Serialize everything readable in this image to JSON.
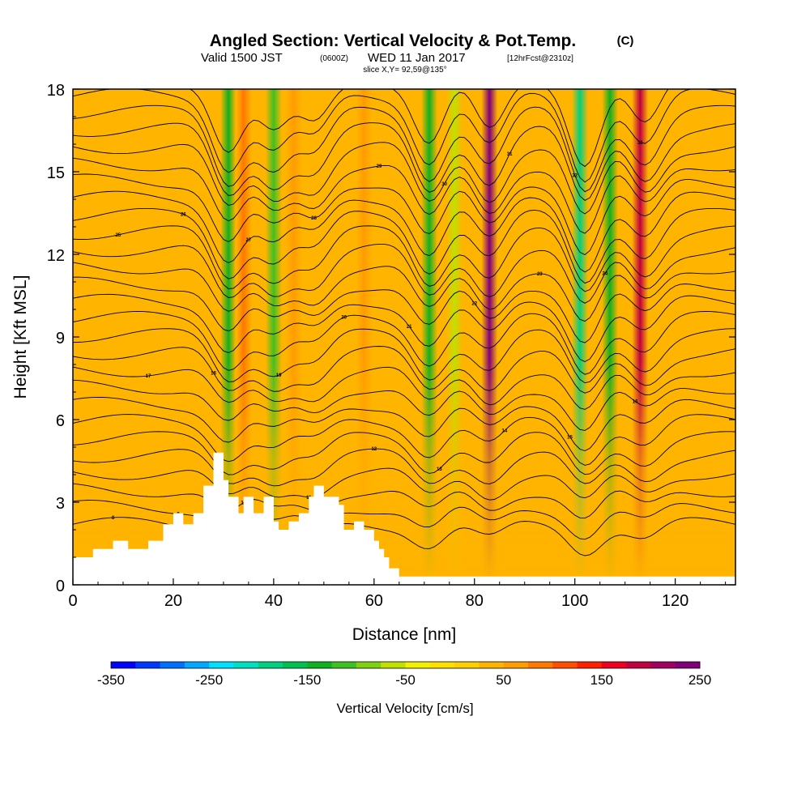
{
  "header": {
    "title_main": "Angled Section: Vertical Velocity & Pot.Temp.",
    "title_mark": "(C)",
    "valid_prefix": "Valid 1500 JST",
    "valid_utc": "(0600Z)",
    "valid_date": "WED 11 Jan 2017",
    "forecast": "[12hrFcst@2310z]",
    "slice": "slice X,Y= 92,59@135°"
  },
  "chart_data": {
    "type": "heatmap",
    "title": "Angled Section: Vertical Velocity & Pot.Temp.",
    "xlabel": "Distance [nm]",
    "ylabel": "Height [Kft MSL]",
    "xlim": [
      0,
      132
    ],
    "ylim": [
      0,
      18
    ],
    "x_ticks": [
      "0",
      "20",
      "40",
      "60",
      "80",
      "100",
      "120"
    ],
    "y_ticks": [
      "0",
      "3",
      "6",
      "9",
      "12",
      "15",
      "18"
    ],
    "colorbar": {
      "label": "Vertical Velocity [cm/s]",
      "tick_labels": [
        "-350",
        "-250",
        "-150",
        "-50",
        "50",
        "150",
        "250"
      ],
      "boundaries": [
        -350,
        -325,
        -300,
        -275,
        -250,
        -225,
        -200,
        -175,
        -150,
        -125,
        -100,
        -75,
        -50,
        -25,
        0,
        25,
        50,
        75,
        100,
        125,
        150,
        175,
        200,
        225,
        250
      ],
      "colors": [
        "#0000ff",
        "#0038ff",
        "#0070ff",
        "#00a8ff",
        "#00e0ff",
        "#00dfc0",
        "#00d080",
        "#00c050",
        "#10b020",
        "#40c020",
        "#80d010",
        "#c0e000",
        "#f0f000",
        "#ffe000",
        "#ffd000",
        "#ffb400",
        "#ff9c00",
        "#ff7800",
        "#ff5000",
        "#ff2000",
        "#f00020",
        "#c00040",
        "#a00060",
        "#80007a"
      ]
    },
    "vertical_velocity_bands": [
      {
        "x": 31,
        "value": -150
      },
      {
        "x": 34,
        "value": 75
      },
      {
        "x": 40,
        "value": -125
      },
      {
        "x": 44,
        "value": 50
      },
      {
        "x": 58,
        "value": 50
      },
      {
        "x": 71,
        "value": -150
      },
      {
        "x": 76,
        "value": -75
      },
      {
        "x": 83,
        "value": 240
      },
      {
        "x": 101,
        "value": -200
      },
      {
        "x": 107,
        "value": -150
      },
      {
        "x": 113,
        "value": 175
      }
    ],
    "terrain": {
      "x": [
        0,
        4,
        4,
        8,
        8,
        11,
        11,
        15,
        15,
        18,
        18,
        20,
        20,
        22,
        22,
        24,
        24,
        26,
        26,
        28,
        28,
        30,
        30,
        31,
        31,
        33,
        33,
        34,
        34,
        36,
        36,
        38,
        38,
        40,
        40,
        41,
        41,
        43,
        43,
        45,
        45,
        47,
        47,
        48,
        48,
        50,
        50,
        53,
        53,
        54,
        54,
        56,
        56,
        58,
        58,
        60,
        60,
        61,
        61,
        62,
        62,
        63,
        63,
        65,
        65,
        68,
        68,
        72,
        72,
        132
      ],
      "y": [
        1.0,
        1.0,
        1.3,
        1.3,
        1.6,
        1.6,
        1.3,
        1.3,
        1.6,
        1.6,
        2.2,
        2.2,
        2.6,
        2.6,
        2.2,
        2.2,
        2.6,
        2.6,
        3.6,
        3.6,
        4.8,
        4.8,
        3.8,
        3.8,
        3.2,
        3.2,
        2.6,
        2.6,
        3.2,
        3.2,
        2.6,
        2.6,
        3.2,
        3.2,
        2.3,
        2.3,
        2.0,
        2.0,
        2.3,
        2.3,
        2.6,
        2.6,
        3.2,
        3.2,
        3.6,
        3.6,
        3.2,
        3.2,
        2.9,
        2.9,
        2.0,
        2.0,
        2.3,
        2.3,
        2.0,
        2.0,
        1.6,
        1.6,
        1.3,
        1.3,
        1.0,
        1.0,
        0.6,
        0.6,
        0.3,
        0.3,
        0.3,
        0.3,
        0.3,
        0.3
      ]
    },
    "potential_temperature_contour_labels": [
      "8",
      "9",
      "10",
      "11",
      "12",
      "13",
      "14",
      "15",
      "16",
      "17",
      "18",
      "19",
      "20",
      "21",
      "22",
      "23",
      "24",
      "25",
      "26",
      "27",
      "28",
      "29",
      "30",
      "31",
      "32",
      "33",
      "34"
    ],
    "grid": false
  }
}
